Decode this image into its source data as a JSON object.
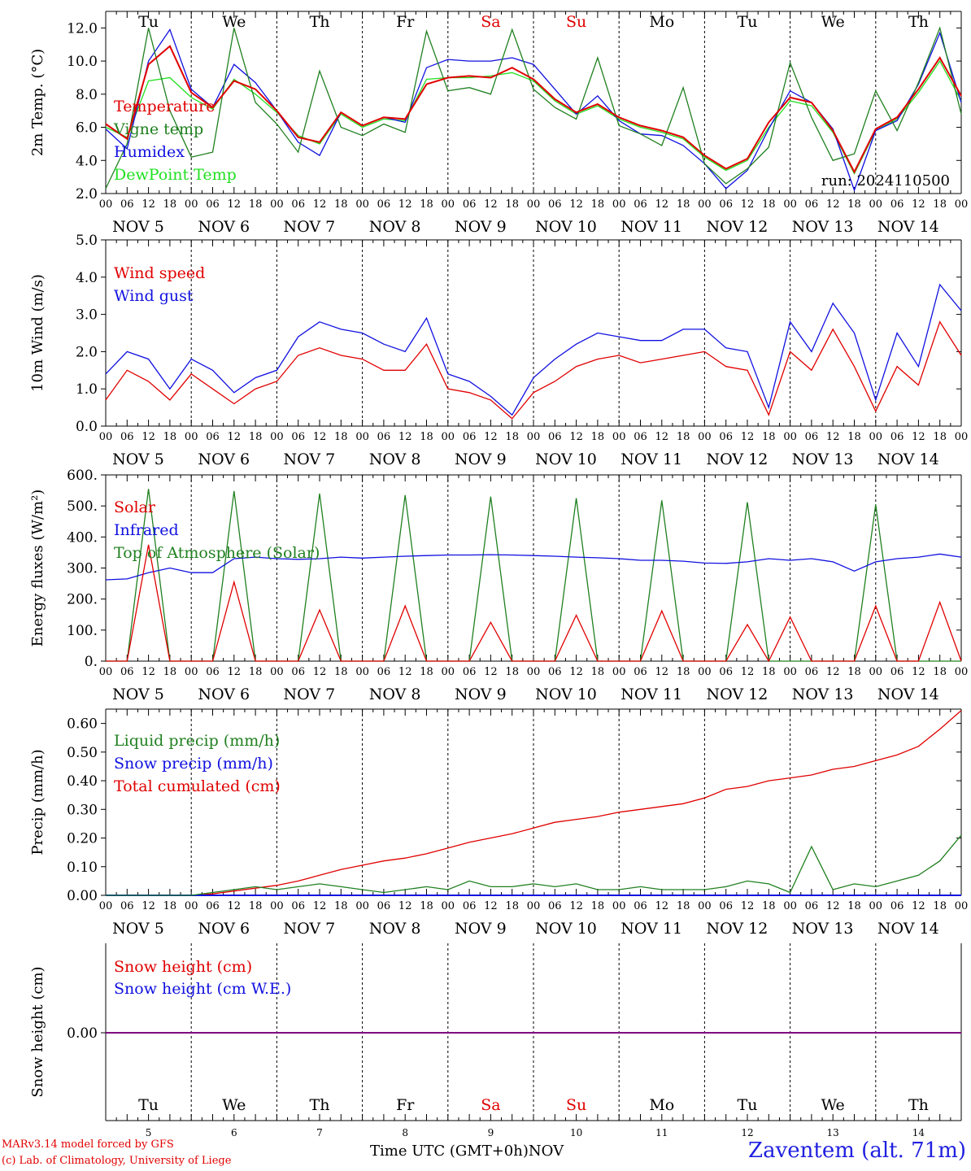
{
  "weekdays": [
    {
      "label": "Tu",
      "color": "#000000"
    },
    {
      "label": "We",
      "color": "#000000"
    },
    {
      "label": "Th",
      "color": "#000000"
    },
    {
      "label": "Fr",
      "color": "#000000"
    },
    {
      "label": "Sa",
      "color": "#e00000"
    },
    {
      "label": "Su",
      "color": "#e00000"
    },
    {
      "label": "Mo",
      "color": "#000000"
    },
    {
      "label": "Tu",
      "color": "#000000"
    },
    {
      "label": "We",
      "color": "#000000"
    },
    {
      "label": "Th",
      "color": "#000000"
    }
  ],
  "date_labels": [
    "NOV  5",
    "NOV  6",
    "NOV  7",
    "NOV  8",
    "NOV  9",
    "NOV 10",
    "NOV 11",
    "NOV 12",
    "NOV 13",
    "NOV 14"
  ],
  "hour_ticks": [
    "00",
    "06",
    "12",
    "18"
  ],
  "final_hour_tick": "00",
  "day_numbers": [
    "5",
    "6",
    "7",
    "8",
    "9",
    "10",
    "11",
    "12",
    "13",
    "14"
  ],
  "colors": {
    "red": "#e00000",
    "green": "#208020",
    "blue": "#1010e0",
    "lightgreen": "#20e020",
    "purple": "#800080"
  },
  "chart_data": [
    {
      "type": "line",
      "ylabel": "2m Temp. (°C)",
      "ylim": [
        2,
        13
      ],
      "yticks": [
        "2.0",
        "4.0",
        "6.0",
        "8.0",
        "10.0",
        "12.0"
      ],
      "annotation": "run: 2024110500",
      "x_hours": [
        0,
        6,
        12,
        18,
        24,
        30,
        36,
        42,
        48,
        54,
        60,
        66,
        72,
        78,
        84,
        90,
        96,
        102,
        108,
        114,
        120,
        126,
        132,
        138,
        144,
        150,
        156,
        162,
        168,
        174,
        180,
        186,
        192,
        198,
        204,
        210,
        216,
        222,
        228,
        234,
        240
      ],
      "series": [
        {
          "name": "Temperature",
          "color": "#e00000",
          "values": [
            6.2,
            5.3,
            9.8,
            10.9,
            8.1,
            7.2,
            8.8,
            8.3,
            7.0,
            5.4,
            5.1,
            6.9,
            6.1,
            6.6,
            6.5,
            8.6,
            9.0,
            9.1,
            9.0,
            9.6,
            8.9,
            7.7,
            6.9,
            7.4,
            6.6,
            6.1,
            5.8,
            5.4,
            4.3,
            3.5,
            4.1,
            6.3,
            7.8,
            7.5,
            5.8,
            3.3,
            5.9,
            6.6,
            8.3,
            10.2,
            7.9
          ]
        },
        {
          "name": "Vigne temp",
          "color": "#208020",
          "values": [
            2.3,
            5.0,
            12.0,
            7.0,
            4.2,
            4.5,
            12.0,
            7.5,
            6.2,
            4.5,
            9.4,
            6.0,
            5.5,
            6.2,
            5.7,
            11.8,
            8.2,
            8.4,
            8.0,
            11.9,
            8.3,
            7.2,
            6.5,
            10.2,
            6.1,
            5.6,
            4.9,
            8.4,
            3.8,
            2.6,
            3.5,
            4.8,
            9.9,
            6.6,
            4.0,
            4.4,
            8.2,
            5.8,
            8.7,
            12.0,
            6.8
          ]
        },
        {
          "name": "Humidex",
          "color": "#1010e0",
          "values": [
            5.9,
            4.7,
            10.0,
            11.9,
            8.3,
            7.2,
            9.8,
            8.7,
            7.0,
            5.1,
            4.3,
            6.9,
            6.1,
            6.6,
            6.3,
            9.6,
            10.1,
            10.0,
            10.0,
            10.2,
            9.8,
            8.3,
            6.8,
            7.9,
            6.4,
            5.6,
            5.5,
            4.9,
            3.8,
            2.3,
            3.4,
            5.9,
            8.2,
            7.5,
            5.9,
            2.2,
            5.8,
            6.4,
            8.6,
            11.7,
            7.5
          ]
        },
        {
          "name": "DewPoint Temp",
          "color": "#20e020",
          "values": [
            6.0,
            5.4,
            8.8,
            9.0,
            7.8,
            7.1,
            8.9,
            8.0,
            6.9,
            5.5,
            5.0,
            6.8,
            6.0,
            6.5,
            6.4,
            8.9,
            9.0,
            9.0,
            9.1,
            9.3,
            8.8,
            7.6,
            6.8,
            7.3,
            6.5,
            6.0,
            5.7,
            5.3,
            4.2,
            3.4,
            4.0,
            6.0,
            7.6,
            7.3,
            5.7,
            3.2,
            5.8,
            6.5,
            8.1,
            10.0,
            7.6
          ]
        }
      ]
    },
    {
      "type": "line",
      "ylabel": "10m Wind (m/s)",
      "ylim": [
        0,
        5
      ],
      "yticks": [
        "0.0",
        "1.0",
        "2.0",
        "3.0",
        "4.0",
        "5.0"
      ],
      "x_hours": [
        0,
        6,
        12,
        18,
        24,
        30,
        36,
        42,
        48,
        54,
        60,
        66,
        72,
        78,
        84,
        90,
        96,
        102,
        108,
        114,
        120,
        126,
        132,
        138,
        144,
        150,
        156,
        162,
        168,
        174,
        180,
        186,
        192,
        198,
        204,
        210,
        216,
        222,
        228,
        234,
        240
      ],
      "series": [
        {
          "name": "Wind speed",
          "color": "#e00000",
          "values": [
            0.7,
            1.5,
            1.2,
            0.7,
            1.4,
            1.0,
            0.6,
            1.0,
            1.2,
            1.9,
            2.1,
            1.9,
            1.8,
            1.5,
            1.5,
            2.2,
            1.0,
            0.9,
            0.7,
            0.2,
            0.9,
            1.2,
            1.6,
            1.8,
            1.9,
            1.7,
            1.8,
            1.9,
            2.0,
            1.6,
            1.5,
            0.3,
            2.0,
            1.5,
            2.6,
            1.6,
            0.4,
            1.6,
            1.1,
            2.8,
            1.9
          ]
        },
        {
          "name": "Wind gust",
          "color": "#1010e0",
          "values": [
            1.4,
            2.0,
            1.8,
            1.0,
            1.8,
            1.5,
            0.9,
            1.3,
            1.5,
            2.4,
            2.8,
            2.6,
            2.5,
            2.2,
            2.0,
            2.9,
            1.4,
            1.2,
            0.8,
            0.3,
            1.3,
            1.8,
            2.2,
            2.5,
            2.4,
            2.3,
            2.3,
            2.6,
            2.6,
            2.1,
            2.0,
            0.5,
            2.8,
            2.0,
            3.3,
            2.5,
            0.7,
            2.5,
            1.6,
            3.8,
            3.1
          ]
        }
      ]
    },
    {
      "type": "line",
      "ylabel": "Energy fluxes (W/m²)",
      "ylim": [
        0,
        600
      ],
      "yticks": [
        "0.",
        "100.",
        "200.",
        "300.",
        "400.",
        "500.",
        "600."
      ],
      "x_hours": [
        0,
        6,
        12,
        18,
        24,
        30,
        36,
        42,
        48,
        54,
        60,
        66,
        72,
        78,
        84,
        90,
        96,
        102,
        108,
        114,
        120,
        126,
        132,
        138,
        144,
        150,
        156,
        162,
        168,
        174,
        180,
        186,
        192,
        198,
        204,
        210,
        216,
        222,
        228,
        234,
        240
      ],
      "series": [
        {
          "name": "Solar",
          "color": "#e00000",
          "values": [
            0,
            0,
            375,
            0,
            0,
            0,
            255,
            0,
            0,
            0,
            165,
            0,
            0,
            0,
            178,
            0,
            0,
            0,
            125,
            0,
            0,
            0,
            148,
            0,
            0,
            0,
            162,
            0,
            0,
            0,
            118,
            0,
            142,
            0,
            0,
            0,
            178,
            0,
            0,
            190,
            0
          ]
        },
        {
          "name": "Infrared",
          "color": "#1010e0",
          "values": [
            262,
            265,
            285,
            300,
            285,
            285,
            330,
            335,
            330,
            328,
            330,
            335,
            332,
            335,
            338,
            340,
            342,
            342,
            343,
            342,
            340,
            338,
            335,
            333,
            330,
            325,
            325,
            322,
            316,
            315,
            320,
            330,
            325,
            330,
            320,
            290,
            320,
            330,
            335,
            345,
            335
          ]
        },
        {
          "name": "Top of Atmosphere (Solar)",
          "color": "#208020",
          "values": [
            0,
            0,
            555,
            0,
            0,
            0,
            548,
            0,
            0,
            0,
            540,
            0,
            0,
            0,
            535,
            0,
            0,
            0,
            530,
            0,
            0,
            0,
            525,
            0,
            0,
            0,
            518,
            0,
            0,
            0,
            512,
            0,
            0,
            0,
            0,
            0,
            505,
            0,
            0,
            0,
            0
          ]
        }
      ]
    },
    {
      "type": "line",
      "ylabel": "Precip (mm/h)",
      "ylim": [
        0,
        0.65
      ],
      "yticks": [
        "0.00",
        "0.10",
        "0.20",
        "0.30",
        "0.40",
        "0.50",
        "0.60"
      ],
      "x_hours": [
        0,
        6,
        12,
        18,
        24,
        30,
        36,
        42,
        48,
        54,
        60,
        66,
        72,
        78,
        84,
        90,
        96,
        102,
        108,
        114,
        120,
        126,
        132,
        138,
        144,
        150,
        156,
        162,
        168,
        174,
        180,
        186,
        192,
        198,
        204,
        210,
        216,
        222,
        228,
        234,
        240
      ],
      "series": [
        {
          "name": "Liquid precip (mm/h)",
          "color": "#208020",
          "values": [
            0,
            0,
            0,
            0,
            0,
            0.01,
            0.02,
            0.03,
            0.02,
            0.03,
            0.04,
            0.03,
            0.02,
            0.01,
            0.02,
            0.03,
            0.02,
            0.05,
            0.03,
            0.03,
            0.04,
            0.03,
            0.04,
            0.02,
            0.02,
            0.03,
            0.02,
            0.02,
            0.02,
            0.03,
            0.05,
            0.04,
            0.01,
            0.17,
            0.02,
            0.04,
            0.03,
            0.05,
            0.07,
            0.12,
            0.21
          ]
        },
        {
          "name": "Snow precip (mm/h)",
          "color": "#1010e0",
          "values": [
            0,
            0,
            0,
            0,
            0,
            0,
            0,
            0,
            0,
            0,
            0,
            0,
            0,
            0,
            0,
            0,
            0,
            0,
            0,
            0,
            0,
            0,
            0,
            0,
            0,
            0,
            0,
            0,
            0,
            0,
            0,
            0,
            0,
            0,
            0,
            0,
            0,
            0,
            0,
            0,
            0
          ]
        },
        {
          "name": "Total cumulated (cm)",
          "color": "#e00000",
          "values": [
            0,
            0,
            0,
            0,
            0,
            0.005,
            0.015,
            0.025,
            0.035,
            0.05,
            0.07,
            0.09,
            0.105,
            0.12,
            0.13,
            0.145,
            0.165,
            0.185,
            0.2,
            0.215,
            0.235,
            0.255,
            0.265,
            0.275,
            0.29,
            0.3,
            0.31,
            0.32,
            0.34,
            0.37,
            0.38,
            0.4,
            0.41,
            0.42,
            0.44,
            0.45,
            0.47,
            0.49,
            0.52,
            0.58,
            0.645
          ]
        }
      ]
    },
    {
      "type": "line",
      "ylabel": "Snow height (cm)",
      "yticks": [
        "0.00"
      ],
      "series": [
        {
          "name": "Snow height (cm)",
          "color": "#e00000",
          "values": [
            0,
            0
          ]
        },
        {
          "name": "Snow height (cm W.E.)",
          "color": "#1010e0",
          "values": [
            0,
            0
          ]
        }
      ]
    }
  ],
  "footer": {
    "model_line": "MARv3.14 model forced by GFS",
    "credit_line": "(c) Lab. of Climatology, University of Liege",
    "time_axis": "Time UTC (GMT+0h)",
    "month": "NOV",
    "station": "Zaventem (alt. 71m)"
  }
}
